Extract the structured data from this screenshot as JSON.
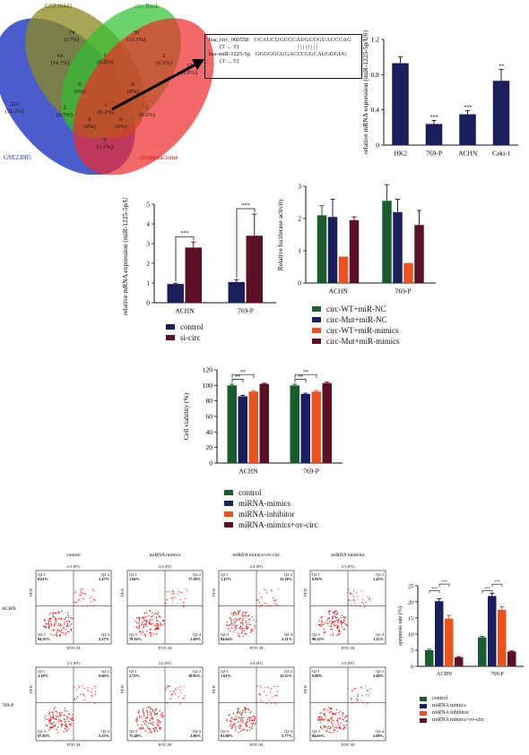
{
  "colors": {
    "navy": "#1a1f5c",
    "dark_red": "#5c1024",
    "green": "#1a5c2e",
    "orange": "#e8531f",
    "black": "#111111",
    "venn_blue": "#2b3fc4",
    "venn_olive": "#7a7a20",
    "venn_green": "#27a827",
    "venn_red": "#e02020",
    "dot_red": "#e5231b"
  },
  "venn": {
    "set_labels": [
      "GSE16441",
      "circ Bank",
      "GSE23085",
      "circinteractome"
    ],
    "regions": [
      {
        "name": "gse16441-only",
        "count": "74",
        "pct": "(17%)"
      },
      {
        "name": "circbank-only",
        "count": "50",
        "pct": "(11.5%)"
      },
      {
        "name": "gse23085-only",
        "count": "223",
        "pct": "(51.3%)"
      },
      {
        "name": "circinteractome-only",
        "count": "12",
        "pct": "(2.8%)"
      },
      {
        "name": "gse23085-gse16441",
        "count": "64",
        "pct": "(14.7%)"
      },
      {
        "name": "gse16441-circbank",
        "count": "1",
        "pct": "(0.2%)"
      },
      {
        "name": "circbank-circinteractome",
        "count": "2",
        "pct": "(0.5%)"
      },
      {
        "name": "gse23085-circinteractome",
        "count": "5",
        "pct": "(1.1%)"
      },
      {
        "name": "gse23085-gse16441-circbank",
        "count": "0",
        "pct": "(0%)"
      },
      {
        "name": "gse16441-circbank-circinteractome",
        "count": "0",
        "pct": "(0%)"
      },
      {
        "name": "gse23085-gse16441-circinteractome",
        "count": "2",
        "pct": "(0.5%)"
      },
      {
        "name": "gse23085-circbank-circinteractome",
        "count": "1",
        "pct": "(0.2%)"
      },
      {
        "name": "all-four",
        "count": "1",
        "pct": "(0.2%)"
      },
      {
        "name": "gse23085-circbank",
        "count": "0",
        "pct": "(0%)"
      },
      {
        "name": "gse16441-circinteractome",
        "count": "0",
        "pct": "(0%)"
      }
    ]
  },
  "sequence_box": {
    "line1_name": "hsa_circ_000558",
    "line1_seq": "CCAUCUGCCCAUGCCGUACCCAG",
    "line1_dir": "(5' ... 3')",
    "bonds": "| | | | | | | |",
    "line2_name": "hsa-miR-1225-5p",
    "line2_seq": "GGGGGGUGACCCGGCAUGGGUG",
    "line2_dir": "(3' ... 5')"
  },
  "chart_data": [
    {
      "type": "bar",
      "categories": [
        "HK2",
        "769-P",
        "ACHN",
        "Caki-1"
      ],
      "values": [
        0.93,
        0.24,
        0.35,
        0.73
      ],
      "errors": [
        0.07,
        0.04,
        0.04,
        0.13
      ],
      "significance": [
        "",
        "***",
        "***",
        "**"
      ],
      "ylabel": "relative mRNA expression (miR-1225-5p/U6)",
      "ylim": [
        0,
        1.2
      ],
      "yticks": [
        "0",
        "0.4",
        "0.8",
        "1.2"
      ]
    },
    {
      "type": "bar",
      "categories": [
        "ACHN",
        "769-P"
      ],
      "series": [
        {
          "name": "control",
          "values": [
            0.95,
            1.05
          ],
          "errors": [
            0.04,
            0.12
          ]
        },
        {
          "name": "si-circ",
          "values": [
            2.8,
            3.4
          ],
          "errors": [
            0.28,
            1.1
          ]
        }
      ],
      "significance": [
        "***",
        "***"
      ],
      "ylabel": "relative mRNA expression (miR-1225-5p/U6)",
      "ylim": [
        0,
        5
      ],
      "yticks": [
        "0",
        "1",
        "2",
        "3",
        "4",
        "5"
      ]
    },
    {
      "type": "bar",
      "categories": [
        "ACHN",
        "769-P"
      ],
      "series": [
        {
          "name": "circ-WT+miR-NC",
          "values": [
            2.1,
            2.55
          ],
          "errors": [
            0.3,
            0.5
          ]
        },
        {
          "name": "circ-Mut+miR-NC",
          "values": [
            2.05,
            2.2
          ],
          "errors": [
            0.55,
            0.4
          ]
        },
        {
          "name": "circ-WT+miR-mimics",
          "values": [
            0.82,
            0.62
          ],
          "errors": [
            0,
            0
          ]
        },
        {
          "name": "circ-Mut+miR-mimics",
          "values": [
            1.95,
            1.8
          ],
          "errors": [
            0.1,
            0.45
          ]
        }
      ],
      "ylabel": "Relative luciferase activity",
      "ylim": [
        0,
        3
      ],
      "yticks": [
        "0",
        "1",
        "2",
        "3"
      ]
    },
    {
      "type": "bar",
      "categories": [
        "ACHN",
        "769-P"
      ],
      "series": [
        {
          "name": "control",
          "values": [
            100,
            100
          ],
          "errors": [
            1.5,
            1.5
          ]
        },
        {
          "name": "miRNA-mimics",
          "values": [
            86,
            89
          ],
          "errors": [
            1.2,
            1
          ]
        },
        {
          "name": "miRNA-inhibitor",
          "values": [
            92,
            92
          ],
          "errors": [
            1.3,
            1.5
          ]
        },
        {
          "name": "miRNA-mimics+ov-circ",
          "values": [
            102,
            103
          ],
          "errors": [
            0.8,
            1.2
          ]
        }
      ],
      "significance_labels": [
        "**",
        "**",
        "**",
        "**"
      ],
      "ylabel": "Cell viability (%)",
      "ylim": [
        0,
        120
      ],
      "yticks": [
        "0",
        "20",
        "40",
        "60",
        "80",
        "100",
        "120"
      ]
    },
    {
      "type": "bar",
      "categories": [
        "ACHN",
        "769-P"
      ],
      "series": [
        {
          "name": "control",
          "values": [
            5,
            9
          ],
          "errors": [
            0.3,
            0.3
          ]
        },
        {
          "name": "miRNA mimics",
          "values": [
            20.2,
            21.8
          ],
          "errors": [
            0.8,
            0.8
          ]
        },
        {
          "name": "miRNA inhibitor",
          "values": [
            14.8,
            17.5
          ],
          "errors": [
            1,
            1
          ]
        },
        {
          "name": "miRNA mimics+ov-circ",
          "values": [
            2.8,
            4.6
          ],
          "errors": [
            0.2,
            0.2
          ]
        }
      ],
      "significance_labels": [
        "***",
        "***",
        "***",
        "***"
      ],
      "ylabel": "apoptosis rate (%)",
      "ylim": [
        0,
        25
      ],
      "yticks": [
        "0",
        "5",
        "10",
        "15",
        "20",
        "25"
      ]
    }
  ],
  "flow": {
    "col_titles": [
      "control",
      "miRNA mimics",
      "miRNA mimics+ov-circ",
      "miRNA inhibitor"
    ],
    "row_labels": [
      "ACHN",
      "769-P"
    ],
    "xaxis": "FITC-H",
    "yaxis": "PI-H",
    "plots": [
      {
        "sub": "2-1 (P1)",
        "q1": "Q2-1\n0.61%",
        "q2": "Q2-2\n2.47%",
        "q3": "Q2-3\n94.35%",
        "q4": "Q2-4\n2.57%"
      },
      {
        "sub": "2-2 (P1)",
        "q1": "Q2-1\n1.04%",
        "q2": "Q2-2\n17.39%",
        "q3": "Q2-3\n78.16%",
        "q4": "Q2-4\n2.60%"
      },
      {
        "sub": "2-4 (P1)",
        "q1": "Q2-1\n1.47%",
        "q2": "Q2-2\n12.18%",
        "q3": "Q2-3\n84.04%",
        "q4": "Q2-4\n2.31%"
      },
      {
        "sub": "2-3 (P1)",
        "q1": "Q2-1\n0.92%",
        "q2": "Q2-2\n1.43%",
        "q3": "Q2-3\n96.52%",
        "q4": "Q2-4\n1.12%"
      },
      {
        "sub": "2-1 (P1)",
        "q1": "Q2-1\n3.19%",
        "q2": "Q2-2\n6.66%",
        "q3": "Q2-3\n87.83%",
        "q4": "Q2-4\n2.33%"
      },
      {
        "sub": "2-2 (P1)",
        "q1": "Q2-1\n2.73%",
        "q2": "Q2-2\n18.83%",
        "q3": "Q2-3\n75.48%",
        "q4": "Q2-4\n2.96%"
      },
      {
        "sub": "2-4 (P1)",
        "q1": "Q2-1\n1.61%",
        "q2": "Q2-2\n11.55%",
        "q3": "Q2-3\n81.08%",
        "q4": "Q2-4\n5.77%"
      },
      {
        "sub": "2-3 (P1)",
        "q1": "Q2-1\n0.80%",
        "q2": "Q2-2\n2.49%",
        "q3": "Q2-3\n94.63%",
        "q4": "Q2-4\n2.08%"
      }
    ]
  }
}
